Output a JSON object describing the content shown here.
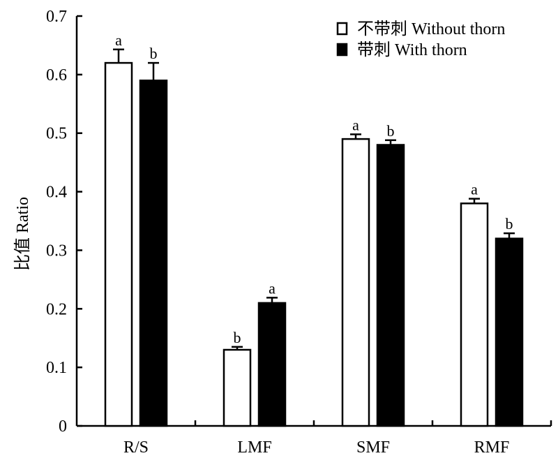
{
  "chart_data": {
    "type": "bar",
    "title": "",
    "xlabel": "",
    "ylabel": "比值 Ratio",
    "ylim": [
      0,
      0.7
    ],
    "yticks": [
      "0",
      "0.1",
      "0.2",
      "0.3",
      "0.4",
      "0.5",
      "0.6",
      "0.7"
    ],
    "categories": [
      "R/S",
      "LMF",
      "SMF",
      "RMF"
    ],
    "legend_position": "top-right",
    "series": [
      {
        "name": "不带刺 Without thorn",
        "fill": "#ffffff",
        "values": [
          0.62,
          0.13,
          0.49,
          0.38
        ],
        "errors": [
          0.023,
          0.005,
          0.008,
          0.008
        ],
        "significance": [
          "a",
          "b",
          "a",
          "a"
        ]
      },
      {
        "name": "带刺 With thorn",
        "fill": "#000000",
        "values": [
          0.59,
          0.21,
          0.48,
          0.32
        ],
        "errors": [
          0.03,
          0.009,
          0.008,
          0.009
        ],
        "significance": [
          "b",
          "a",
          "b",
          "b"
        ]
      }
    ]
  }
}
